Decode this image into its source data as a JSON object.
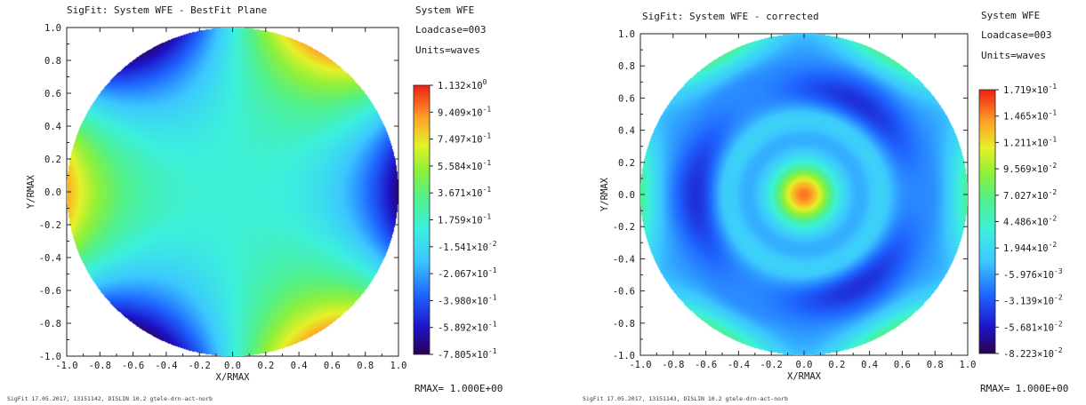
{
  "chart_data": [
    {
      "type": "heatmap",
      "title": "SigFit: System WFE - BestFit Plane",
      "info": [
        "System WFE",
        "Loadcase=003",
        "Units=waves"
      ],
      "xlabel": "X/RMAX",
      "ylabel": "Y/RMAX",
      "xlim": [
        -1.0,
        1.0
      ],
      "ylim": [
        -1.0,
        1.0
      ],
      "xticks": [
        "-1.0",
        "-0.8",
        "-0.6",
        "-0.4",
        "-0.2",
        "0.0",
        "0.2",
        "0.4",
        "0.6",
        "0.8",
        "1.0"
      ],
      "yticks": [
        "1.0",
        "0.8",
        "0.6",
        "0.4",
        "0.2",
        "0.0",
        "-0.2",
        "-0.4",
        "-0.6",
        "-0.8",
        "-1.0"
      ],
      "colorbar": {
        "min": -0.7805,
        "max": 1.132,
        "labels": [
          {
            "m": "1.132",
            "e": "0"
          },
          {
            "m": "9.409",
            "e": "-1"
          },
          {
            "m": "7.497",
            "e": "-1"
          },
          {
            "m": "5.584",
            "e": "-1"
          },
          {
            "m": "3.671",
            "e": "-1"
          },
          {
            "m": "1.759",
            "e": "-1"
          },
          {
            "m": "-1.541",
            "e": "-2"
          },
          {
            "m": "-2.067",
            "e": "-1"
          },
          {
            "m": "-3.980",
            "e": "-1"
          },
          {
            "m": "-5.892",
            "e": "-1"
          },
          {
            "m": "-7.805",
            "e": "-1"
          }
        ]
      },
      "field": "trefoil",
      "rmax": "RMAX= 1.000E+00",
      "footer": "SigFit    17.05.2017, 13151142, DISLIN 10.2 gtele-drn-act-norb"
    },
    {
      "type": "heatmap",
      "title": "SigFit: System WFE - corrected",
      "info": [
        "System WFE",
        "Loadcase=003",
        "Units=waves"
      ],
      "xlabel": "X/RMAX",
      "ylabel": "Y/RMAX",
      "xlim": [
        -1.0,
        1.0
      ],
      "ylim": [
        -1.0,
        1.0
      ],
      "xticks": [
        "-1.0",
        "-0.8",
        "-0.6",
        "-0.4",
        "-0.2",
        "0.0",
        "0.2",
        "0.4",
        "0.6",
        "0.8",
        "1.0"
      ],
      "yticks": [
        "1.0",
        "0.8",
        "0.6",
        "0.4",
        "0.2",
        "0.0",
        "-0.2",
        "-0.4",
        "-0.6",
        "-0.8",
        "-1.0"
      ],
      "colorbar": {
        "min": -0.08223,
        "max": 0.1719,
        "labels": [
          {
            "m": "1.719",
            "e": "-1"
          },
          {
            "m": "1.465",
            "e": "-1"
          },
          {
            "m": "1.211",
            "e": "-1"
          },
          {
            "m": "9.569",
            "e": "-2"
          },
          {
            "m": "7.027",
            "e": "-2"
          },
          {
            "m": "4.486",
            "e": "-2"
          },
          {
            "m": "1.944",
            "e": "-2"
          },
          {
            "m": "-5.976",
            "e": "-3"
          },
          {
            "m": "-3.139",
            "e": "-2"
          },
          {
            "m": "-5.681",
            "e": "-2"
          },
          {
            "m": "-8.223",
            "e": "-2"
          }
        ]
      },
      "field": "residual",
      "rmax": "RMAX= 1.000E+00",
      "footer": "SigFit    17.05.2017, 13151143, DISLIN 10.2 gtele-drn-act-norb"
    }
  ]
}
